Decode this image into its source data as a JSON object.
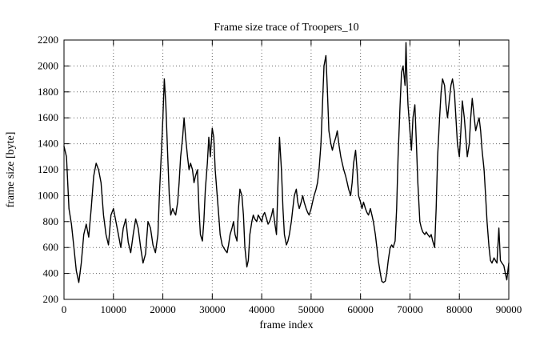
{
  "chart_data": {
    "type": "line",
    "title": "Frame size trace of Troopers_10",
    "xlabel": "frame index",
    "ylabel": "frame size [byte]",
    "xlim": [
      0,
      90000
    ],
    "ylim": [
      200,
      2200
    ],
    "xticks": [
      0,
      10000,
      20000,
      30000,
      40000,
      50000,
      60000,
      70000,
      80000,
      90000
    ],
    "yticks": [
      200,
      400,
      600,
      800,
      1000,
      1200,
      1400,
      1600,
      1800,
      2000,
      2200
    ],
    "grid": true,
    "legend_position": "none",
    "line_color": "#000000",
    "grid_color": "#666666",
    "background": "#ffffff",
    "series_name": "frame size",
    "points": [
      [
        0,
        1380
      ],
      [
        500,
        1300
      ],
      [
        1000,
        900
      ],
      [
        1500,
        780
      ],
      [
        2000,
        600
      ],
      [
        2500,
        420
      ],
      [
        3000,
        330
      ],
      [
        3500,
        480
      ],
      [
        4000,
        700
      ],
      [
        4500,
        780
      ],
      [
        5000,
        680
      ],
      [
        5500,
        900
      ],
      [
        6000,
        1150
      ],
      [
        6500,
        1250
      ],
      [
        7000,
        1200
      ],
      [
        7500,
        1100
      ],
      [
        8000,
        850
      ],
      [
        8500,
        700
      ],
      [
        9000,
        620
      ],
      [
        9500,
        850
      ],
      [
        10000,
        900
      ],
      [
        10500,
        800
      ],
      [
        11000,
        700
      ],
      [
        11500,
        600
      ],
      [
        12000,
        750
      ],
      [
        12500,
        820
      ],
      [
        13000,
        640
      ],
      [
        13500,
        560
      ],
      [
        14000,
        700
      ],
      [
        14500,
        820
      ],
      [
        15000,
        750
      ],
      [
        15500,
        600
      ],
      [
        16000,
        480
      ],
      [
        16500,
        550
      ],
      [
        17000,
        800
      ],
      [
        17500,
        750
      ],
      [
        18000,
        620
      ],
      [
        18500,
        560
      ],
      [
        19000,
        700
      ],
      [
        19300,
        1000
      ],
      [
        19600,
        1250
      ],
      [
        20000,
        1600
      ],
      [
        20300,
        1900
      ],
      [
        20600,
        1700
      ],
      [
        21000,
        1300
      ],
      [
        21300,
        1000
      ],
      [
        21600,
        850
      ],
      [
        22000,
        900
      ],
      [
        22300,
        870
      ],
      [
        22600,
        850
      ],
      [
        23000,
        950
      ],
      [
        23300,
        1100
      ],
      [
        23600,
        1300
      ],
      [
        24000,
        1450
      ],
      [
        24300,
        1600
      ],
      [
        24600,
        1450
      ],
      [
        25000,
        1300
      ],
      [
        25300,
        1200
      ],
      [
        25600,
        1250
      ],
      [
        26000,
        1200
      ],
      [
        26300,
        1100
      ],
      [
        26600,
        1150
      ],
      [
        27000,
        1200
      ],
      [
        27300,
        900
      ],
      [
        27600,
        700
      ],
      [
        28000,
        650
      ],
      [
        28300,
        800
      ],
      [
        28600,
        1050
      ],
      [
        29000,
        1250
      ],
      [
        29300,
        1450
      ],
      [
        29600,
        1300
      ],
      [
        30000,
        1520
      ],
      [
        30300,
        1450
      ],
      [
        30600,
        1200
      ],
      [
        31000,
        1000
      ],
      [
        31300,
        850
      ],
      [
        31600,
        700
      ],
      [
        32000,
        620
      ],
      [
        32300,
        600
      ],
      [
        32600,
        580
      ],
      [
        33000,
        560
      ],
      [
        33300,
        620
      ],
      [
        33600,
        700
      ],
      [
        34000,
        750
      ],
      [
        34300,
        800
      ],
      [
        34600,
        700
      ],
      [
        35000,
        650
      ],
      [
        35300,
        900
      ],
      [
        35600,
        1050
      ],
      [
        36000,
        1000
      ],
      [
        36300,
        850
      ],
      [
        36600,
        600
      ],
      [
        37000,
        450
      ],
      [
        37300,
        500
      ],
      [
        37600,
        700
      ],
      [
        38000,
        800
      ],
      [
        38300,
        850
      ],
      [
        38600,
        820
      ],
      [
        39000,
        800
      ],
      [
        39300,
        850
      ],
      [
        39600,
        830
      ],
      [
        40000,
        800
      ],
      [
        40300,
        850
      ],
      [
        40600,
        870
      ],
      [
        41000,
        820
      ],
      [
        41300,
        780
      ],
      [
        41600,
        800
      ],
      [
        42000,
        850
      ],
      [
        42300,
        900
      ],
      [
        42600,
        800
      ],
      [
        43000,
        700
      ],
      [
        43300,
        1100
      ],
      [
        43600,
        1450
      ],
      [
        44000,
        1200
      ],
      [
        44300,
        900
      ],
      [
        44600,
        700
      ],
      [
        45000,
        620
      ],
      [
        45300,
        650
      ],
      [
        45600,
        700
      ],
      [
        46000,
        800
      ],
      [
        46300,
        900
      ],
      [
        46600,
        1000
      ],
      [
        47000,
        1050
      ],
      [
        47300,
        950
      ],
      [
        47600,
        900
      ],
      [
        48000,
        950
      ],
      [
        48300,
        1000
      ],
      [
        48600,
        950
      ],
      [
        49000,
        900
      ],
      [
        49300,
        870
      ],
      [
        49600,
        850
      ],
      [
        50000,
        900
      ],
      [
        50300,
        950
      ],
      [
        50600,
        1000
      ],
      [
        51000,
        1050
      ],
      [
        51300,
        1100
      ],
      [
        51600,
        1200
      ],
      [
        52000,
        1400
      ],
      [
        52300,
        1700
      ],
      [
        52600,
        2000
      ],
      [
        53000,
        2080
      ],
      [
        53300,
        1800
      ],
      [
        53600,
        1500
      ],
      [
        54000,
        1400
      ],
      [
        54300,
        1350
      ],
      [
        54600,
        1400
      ],
      [
        55000,
        1450
      ],
      [
        55300,
        1500
      ],
      [
        55600,
        1400
      ],
      [
        56000,
        1300
      ],
      [
        56300,
        1250
      ],
      [
        56600,
        1200
      ],
      [
        57000,
        1150
      ],
      [
        57300,
        1100
      ],
      [
        57600,
        1050
      ],
      [
        58000,
        1000
      ],
      [
        58300,
        1100
      ],
      [
        58600,
        1250
      ],
      [
        59000,
        1350
      ],
      [
        59300,
        1200
      ],
      [
        59600,
        1000
      ],
      [
        60000,
        950
      ],
      [
        60300,
        900
      ],
      [
        60600,
        950
      ],
      [
        61000,
        900
      ],
      [
        61300,
        870
      ],
      [
        61600,
        850
      ],
      [
        62000,
        900
      ],
      [
        62300,
        850
      ],
      [
        62600,
        800
      ],
      [
        63000,
        700
      ],
      [
        63300,
        600
      ],
      [
        63600,
        500
      ],
      [
        64000,
        400
      ],
      [
        64300,
        340
      ],
      [
        64600,
        330
      ],
      [
        65000,
        340
      ],
      [
        65300,
        400
      ],
      [
        65600,
        500
      ],
      [
        66000,
        600
      ],
      [
        66300,
        620
      ],
      [
        66600,
        600
      ],
      [
        67000,
        650
      ],
      [
        67300,
        900
      ],
      [
        67600,
        1300
      ],
      [
        68000,
        1700
      ],
      [
        68300,
        1950
      ],
      [
        68600,
        2000
      ],
      [
        69000,
        1850
      ],
      [
        69200,
        2180
      ],
      [
        69400,
        1900
      ],
      [
        69600,
        1700
      ],
      [
        70000,
        1500
      ],
      [
        70300,
        1350
      ],
      [
        70600,
        1600
      ],
      [
        71000,
        1700
      ],
      [
        71300,
        1400
      ],
      [
        71600,
        1100
      ],
      [
        72000,
        800
      ],
      [
        72300,
        750
      ],
      [
        72600,
        720
      ],
      [
        73000,
        700
      ],
      [
        73300,
        720
      ],
      [
        73600,
        700
      ],
      [
        74000,
        680
      ],
      [
        74300,
        700
      ],
      [
        74600,
        650
      ],
      [
        75000,
        600
      ],
      [
        75300,
        900
      ],
      [
        75600,
        1300
      ],
      [
        76000,
        1600
      ],
      [
        76300,
        1800
      ],
      [
        76600,
        1900
      ],
      [
        77000,
        1850
      ],
      [
        77300,
        1700
      ],
      [
        77600,
        1600
      ],
      [
        78000,
        1750
      ],
      [
        78300,
        1850
      ],
      [
        78600,
        1900
      ],
      [
        79000,
        1800
      ],
      [
        79300,
        1600
      ],
      [
        79600,
        1400
      ],
      [
        80000,
        1300
      ],
      [
        80300,
        1500
      ],
      [
        80600,
        1730
      ],
      [
        81000,
        1600
      ],
      [
        81300,
        1450
      ],
      [
        81600,
        1300
      ],
      [
        82000,
        1400
      ],
      [
        82300,
        1600
      ],
      [
        82600,
        1750
      ],
      [
        83000,
        1600
      ],
      [
        83300,
        1500
      ],
      [
        83600,
        1550
      ],
      [
        84000,
        1600
      ],
      [
        84300,
        1500
      ],
      [
        84600,
        1350
      ],
      [
        85000,
        1200
      ],
      [
        85300,
        1000
      ],
      [
        85600,
        800
      ],
      [
        86000,
        600
      ],
      [
        86300,
        500
      ],
      [
        86600,
        480
      ],
      [
        87000,
        520
      ],
      [
        87300,
        500
      ],
      [
        87600,
        480
      ],
      [
        88000,
        750
      ],
      [
        88300,
        500
      ],
      [
        88600,
        480
      ],
      [
        89000,
        460
      ],
      [
        89300,
        400
      ],
      [
        89600,
        350
      ],
      [
        90000,
        480
      ]
    ]
  }
}
